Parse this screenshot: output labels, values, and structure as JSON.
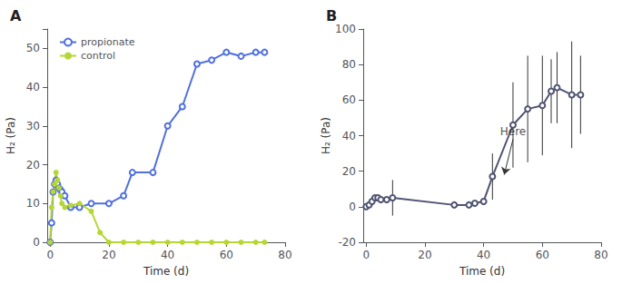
{
  "chart_data": [
    {
      "type": "line",
      "title": "A",
      "xlabel": "Time (d)",
      "ylabel": "H₂ (Pa)",
      "xlim": [
        -1,
        80
      ],
      "xticks": [
        0,
        20,
        40,
        60,
        80
      ],
      "ylim": [
        0,
        55
      ],
      "yticks": [
        0,
        10,
        20,
        30,
        40,
        50
      ],
      "grid": false,
      "legend": "upper left",
      "series": [
        {
          "name": "propionate",
          "marker": "open_circle",
          "x": [
            0,
            0.5,
            1,
            1.5,
            2,
            2.5,
            3,
            3.5,
            4,
            5,
            7,
            10,
            14,
            20,
            25,
            28,
            35,
            40,
            45,
            50,
            55,
            60,
            65,
            70,
            73
          ],
          "values": [
            0,
            5,
            13,
            15,
            16,
            15,
            14,
            13.5,
            13,
            12,
            9,
            9,
            10,
            10,
            12,
            18,
            18,
            30,
            35,
            46,
            47,
            49,
            48,
            49,
            49
          ]
        },
        {
          "name": "control",
          "marker": "circle",
          "x": [
            0,
            0.5,
            1,
            1.5,
            2,
            2.5,
            3,
            3.5,
            4,
            5,
            7,
            10,
            14,
            17,
            20,
            25,
            30,
            35,
            40,
            45,
            50,
            55,
            60,
            65,
            70,
            73
          ],
          "values": [
            0,
            9,
            13,
            15,
            18,
            16,
            14,
            12,
            10,
            9,
            9.5,
            10,
            8,
            2.5,
            0,
            0,
            0,
            0,
            0,
            0,
            0,
            0,
            0,
            0,
            0,
            0
          ]
        }
      ]
    },
    {
      "type": "line",
      "title": "B",
      "xlabel": "Time (d)",
      "ylabel": "H₂ (Pa)",
      "xlim": [
        -1,
        80
      ],
      "xticks": [
        0,
        20,
        40,
        60,
        80
      ],
      "ylim": [
        -20,
        100
      ],
      "yticks": [
        -20,
        0,
        20,
        40,
        60,
        80,
        100
      ],
      "grid": false,
      "marker": "open_circle",
      "x": [
        0,
        1,
        2,
        3,
        4,
        5,
        7,
        9,
        30,
        35,
        37,
        40,
        43,
        50,
        55,
        60,
        63,
        65,
        70,
        73
      ],
      "values": [
        0,
        1,
        3,
        5,
        5,
        4,
        4,
        5,
        1,
        1,
        2,
        3,
        17,
        46,
        55,
        57,
        65,
        67,
        63,
        63
      ],
      "yerr": [
        0,
        0,
        0,
        0,
        0,
        0,
        0,
        10,
        0,
        0,
        0,
        1,
        13,
        24,
        30,
        28,
        18,
        20,
        30,
        22
      ],
      "annotations": [
        {
          "text": "Here",
          "xy": [
            47,
            18
          ],
          "xytext": [
            50,
            38
          ]
        }
      ]
    }
  ]
}
